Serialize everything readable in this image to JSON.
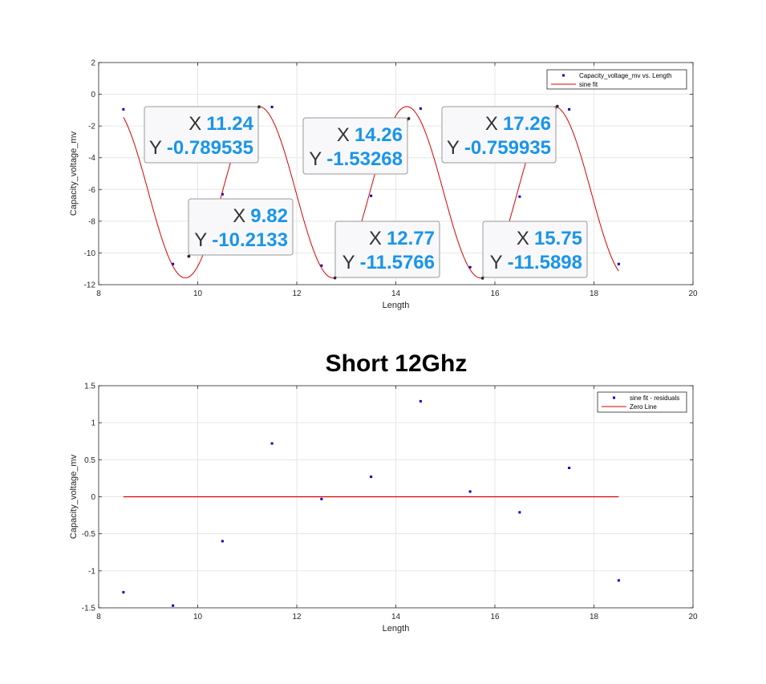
{
  "colors": {
    "points": "#0000cc",
    "fit": "#dd0000",
    "zero_line": "#dd0000",
    "tip_value": "#1a95e8",
    "grid": "#e6e6e6"
  },
  "chart_data": [
    {
      "type": "scatter",
      "title": "",
      "xlabel": "Length",
      "ylabel": "Capacity_voltage_mv",
      "xlim": [
        8,
        20
      ],
      "ylim": [
        -12,
        2
      ],
      "xticks": [
        8,
        10,
        12,
        14,
        16,
        18,
        20
      ],
      "yticks": [
        -12,
        -10,
        -8,
        -6,
        -4,
        -2,
        0,
        2
      ],
      "grid": true,
      "legend_position": "top-right",
      "series": [
        {
          "name": "Capacity_voltage_mv vs. Length",
          "kind": "points",
          "x": [
            8.5,
            9.5,
            10.5,
            11.5,
            12.5,
            13.5,
            14.5,
            15.5,
            16.5,
            17.5,
            18.5
          ],
          "y": [
            -0.95,
            -10.7,
            -6.3,
            -0.8,
            -10.8,
            -6.4,
            -0.9,
            -10.9,
            -6.45,
            -0.95,
            -10.7
          ]
        },
        {
          "name": "sine fit",
          "kind": "curve",
          "model": {
            "center": -6.175,
            "amplitude": 5.4,
            "period": 2.98,
            "phase_x": 11.24,
            "x_start": 8.5,
            "x_end": 18.5
          }
        }
      ],
      "annotations": [
        {
          "x_label": "X",
          "y_label": "Y",
          "x": 11.24,
          "y": -0.789535,
          "x_text": "11.24",
          "y_text": "-0.789535"
        },
        {
          "x_label": "X",
          "y_label": "Y",
          "x": 9.82,
          "y": -10.2133,
          "x_text": "9.82",
          "y_text": "-10.2133"
        },
        {
          "x_label": "X",
          "y_label": "Y",
          "x": 14.26,
          "y": -1.53268,
          "x_text": "14.26",
          "y_text": "-1.53268"
        },
        {
          "x_label": "X",
          "y_label": "Y",
          "x": 12.77,
          "y": -11.5766,
          "x_text": "12.77",
          "y_text": "-11.5766"
        },
        {
          "x_label": "X",
          "y_label": "Y",
          "x": 17.26,
          "y": -0.759935,
          "x_text": "17.26",
          "y_text": "-0.759935"
        },
        {
          "x_label": "X",
          "y_label": "Y",
          "x": 15.75,
          "y": -11.5898,
          "x_text": "15.75",
          "y_text": "-11.5898"
        }
      ]
    },
    {
      "type": "scatter",
      "title": "Short 12Ghz",
      "xlabel": "Length",
      "ylabel": "Capacity_voltage_mv",
      "xlim": [
        8,
        20
      ],
      "ylim": [
        -1.5,
        1.5
      ],
      "xticks": [
        8,
        10,
        12,
        14,
        16,
        18,
        20
      ],
      "yticks": [
        -1.5,
        -1,
        -0.5,
        0,
        0.5,
        1,
        1.5
      ],
      "grid": true,
      "legend_position": "top-right",
      "series": [
        {
          "name": "sine fit - residuals",
          "kind": "points",
          "x": [
            8.5,
            9.5,
            10.5,
            11.5,
            12.5,
            13.5,
            14.5,
            15.5,
            16.5,
            17.5,
            18.5
          ],
          "y": [
            -1.29,
            -1.47,
            -0.6,
            0.72,
            -0.03,
            0.27,
            1.29,
            0.07,
            -0.21,
            0.39,
            -1.13
          ]
        },
        {
          "name": "Zero Line",
          "kind": "line",
          "x": [
            8.5,
            18.5
          ],
          "y": [
            0,
            0
          ]
        }
      ]
    }
  ]
}
